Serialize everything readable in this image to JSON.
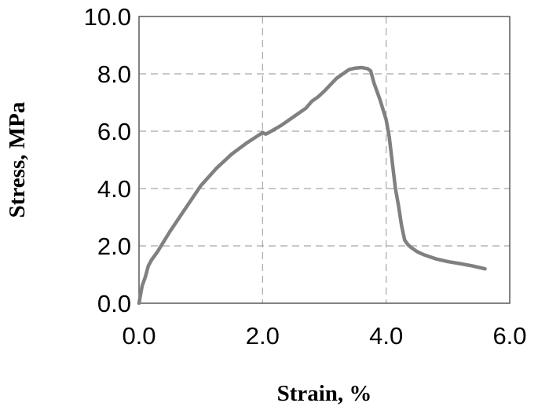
{
  "chart_data": {
    "type": "line",
    "title": "",
    "xlabel": "Strain, %",
    "ylabel": "Stress, MPa",
    "xlim": [
      0,
      6
    ],
    "ylim": [
      0,
      10
    ],
    "xticks": [
      0,
      2,
      4,
      6
    ],
    "yticks": [
      0,
      2,
      4,
      6,
      8,
      10
    ],
    "xtick_labels": [
      "0.0",
      "2.0",
      "4.0",
      "6.0"
    ],
    "ytick_labels": [
      "0.0",
      "2.0",
      "4.0",
      "6.0",
      "8.0",
      "10.0"
    ],
    "grid": true,
    "grid_style": "dashed",
    "legend": "none",
    "series": [
      {
        "color": "#808080",
        "x": [
          0,
          0.05,
          0.1,
          0.15,
          0.2,
          0.3,
          0.5,
          0.75,
          1.0,
          1.25,
          1.5,
          1.75,
          2.0,
          2.05,
          2.1,
          2.3,
          2.5,
          2.7,
          2.8,
          2.9,
          3.0,
          3.2,
          3.4,
          3.5,
          3.6,
          3.7,
          3.75,
          3.8,
          3.9,
          4.0,
          4.05,
          4.1,
          4.15,
          4.2,
          4.25,
          4.3,
          4.35,
          4.4,
          4.5,
          4.6,
          4.8,
          5.0,
          5.2,
          5.4,
          5.6
        ],
        "y": [
          0,
          0.6,
          0.9,
          1.3,
          1.5,
          1.8,
          2.5,
          3.3,
          4.1,
          4.7,
          5.2,
          5.6,
          5.95,
          5.9,
          5.95,
          6.2,
          6.5,
          6.8,
          7.05,
          7.2,
          7.4,
          7.85,
          8.15,
          8.2,
          8.22,
          8.18,
          8.1,
          7.7,
          7.1,
          6.4,
          5.8,
          4.9,
          4.0,
          3.4,
          2.7,
          2.2,
          2.05,
          1.95,
          1.8,
          1.7,
          1.55,
          1.45,
          1.38,
          1.3,
          1.2
        ]
      }
    ]
  }
}
